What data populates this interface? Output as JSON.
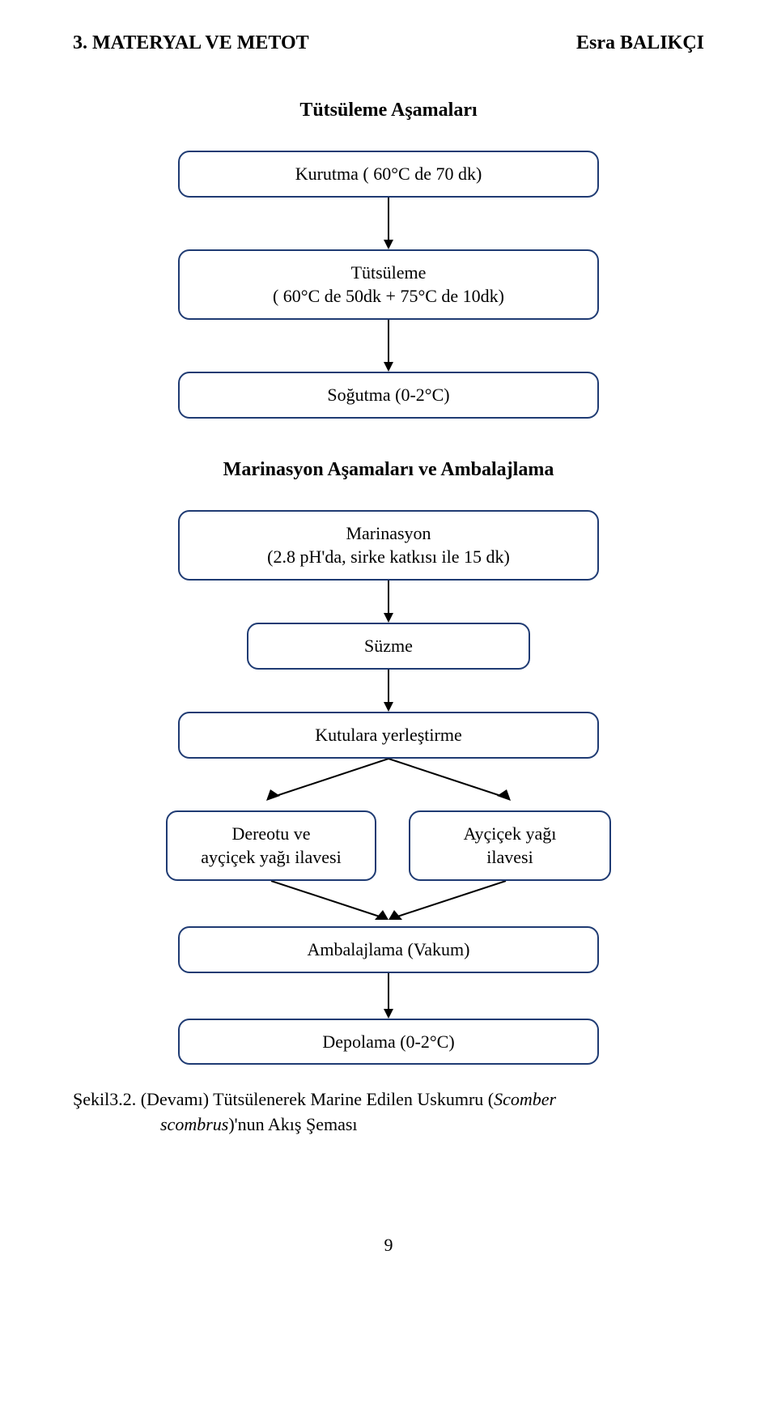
{
  "colors": {
    "box_border": "#1f3b73",
    "arrow": "#000000",
    "text": "#000000",
    "bg": "#ffffff"
  },
  "fonts": {
    "body_family": "Times New Roman",
    "header_size_pt": 18,
    "section_size_pt": 18,
    "box_size_pt": 16
  },
  "header": {
    "left": "3. MATERYAL VE METOT",
    "right": "Esra BALIKÇI"
  },
  "diagram": {
    "section1_title": "Tütsüleme Aşamaları",
    "section2_title": "Marinasyon Aşamaları ve Ambalajlama",
    "boxes": {
      "kurutma": "Kurutma ( 60°C de 70 dk)",
      "tutsuleme": "Tütsüleme\n( 60°C de 50dk + 75°C de 10dk)",
      "sogutma": "Soğutma (0-2°C)",
      "marinasyon": "Marinasyon\n(2.8 pH'da, sirke katkısı ile 15 dk)",
      "suzme": "Süzme",
      "kutulara": "Kutulara yerleştirme",
      "dereotu": "Dereotu ve\nayçiçek yağı ilavesi",
      "aycicek": "Ayçiçek yağı\nilavesi",
      "ambalaj": "Ambalajlama (Vakum)",
      "depolama": "Depolama (0-2°C)"
    },
    "arrow_len_short": 46,
    "arrow_len_long": 64,
    "box_border_radius": 14,
    "box_border_width": 2
  },
  "caption": {
    "line1": "Şekil3.2. (Devamı) Tütsülenerek Marine Edilen Uskumru (Scomber",
    "line2_indent": "scombrus)'nun Akış Şeması"
  },
  "page_number": "9"
}
